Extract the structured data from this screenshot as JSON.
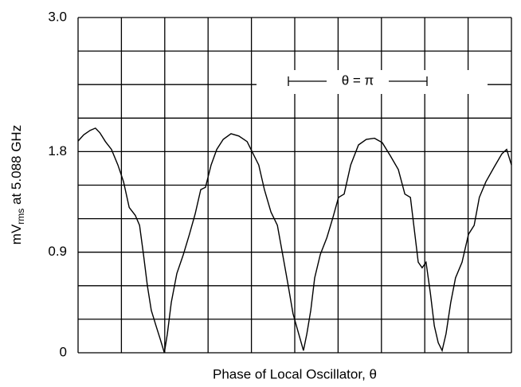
{
  "chart_data": {
    "type": "line",
    "y_label": {
      "main": "mV",
      "sub": "rms",
      "rest": " at 5.088 GHz"
    },
    "x_label": "Phase of Local Oscillator, θ",
    "annotation": "θ = π",
    "xlim": [
      0,
      10
    ],
    "ylim": [
      0,
      3.0
    ],
    "yticks": [
      0,
      0.9,
      1.8,
      {
        "value": 3.0,
        "label": "3.0"
      }
    ],
    "x_grid": [
      0,
      1,
      2,
      3,
      4,
      5,
      6,
      7,
      8,
      9,
      10
    ],
    "y_grid": [
      0.3,
      0.6,
      1.2,
      1.5,
      2.1,
      2.4,
      2.7
    ],
    "grid": true,
    "color": "#000000",
    "x": [
      0,
      0.13,
      0.28,
      0.4,
      0.5,
      0.63,
      0.77,
      0.92,
      1.05,
      1.18,
      1.32,
      1.42,
      1.51,
      1.6,
      1.69,
      1.8,
      1.89,
      1.99,
      2.06,
      2.15,
      2.28,
      2.43,
      2.57,
      2.7,
      2.83,
      2.94,
      3.07,
      3.2,
      3.35,
      3.53,
      3.71,
      3.9,
      4.04,
      4.17,
      4.3,
      4.45,
      4.6,
      4.72,
      4.85,
      4.96,
      5.09,
      5.2,
      5.28,
      5.37,
      5.46,
      5.59,
      5.74,
      5.88,
      6.01,
      6.14,
      6.29,
      6.47,
      6.65,
      6.84,
      7.02,
      7.21,
      7.39,
      7.54,
      7.67,
      7.76,
      7.85,
      7.94,
      8.03,
      8.13,
      8.22,
      8.31,
      8.4,
      8.49,
      8.6,
      8.71,
      8.86,
      9.01,
      9.14,
      9.26,
      9.41,
      9.6,
      9.78,
      9.89,
      10
    ],
    "values": [
      1.895,
      1.95,
      1.99,
      2.01,
      1.97,
      1.89,
      1.82,
      1.68,
      1.53,
      1.3,
      1.23,
      1.14,
      0.88,
      0.6,
      0.38,
      0.24,
      0.13,
      0,
      0.17,
      0.45,
      0.71,
      0.88,
      1.06,
      1.24,
      1.46,
      1.48,
      1.68,
      1.82,
      1.91,
      1.96,
      1.94,
      1.89,
      1.78,
      1.68,
      1.46,
      1.26,
      1.14,
      0.88,
      0.6,
      0.35,
      0.17,
      0.02,
      0.17,
      0.38,
      0.67,
      0.88,
      1.03,
      1.21,
      1.39,
      1.42,
      1.68,
      1.86,
      1.91,
      1.92,
      1.88,
      1.76,
      1.64,
      1.42,
      1.39,
      1.1,
      0.81,
      0.76,
      0.81,
      0.53,
      0.24,
      0.09,
      0.02,
      0.17,
      0.45,
      0.67,
      0.81,
      1.06,
      1.14,
      1.39,
      1.53,
      1.66,
      1.78,
      1.82,
      1.68
    ]
  }
}
